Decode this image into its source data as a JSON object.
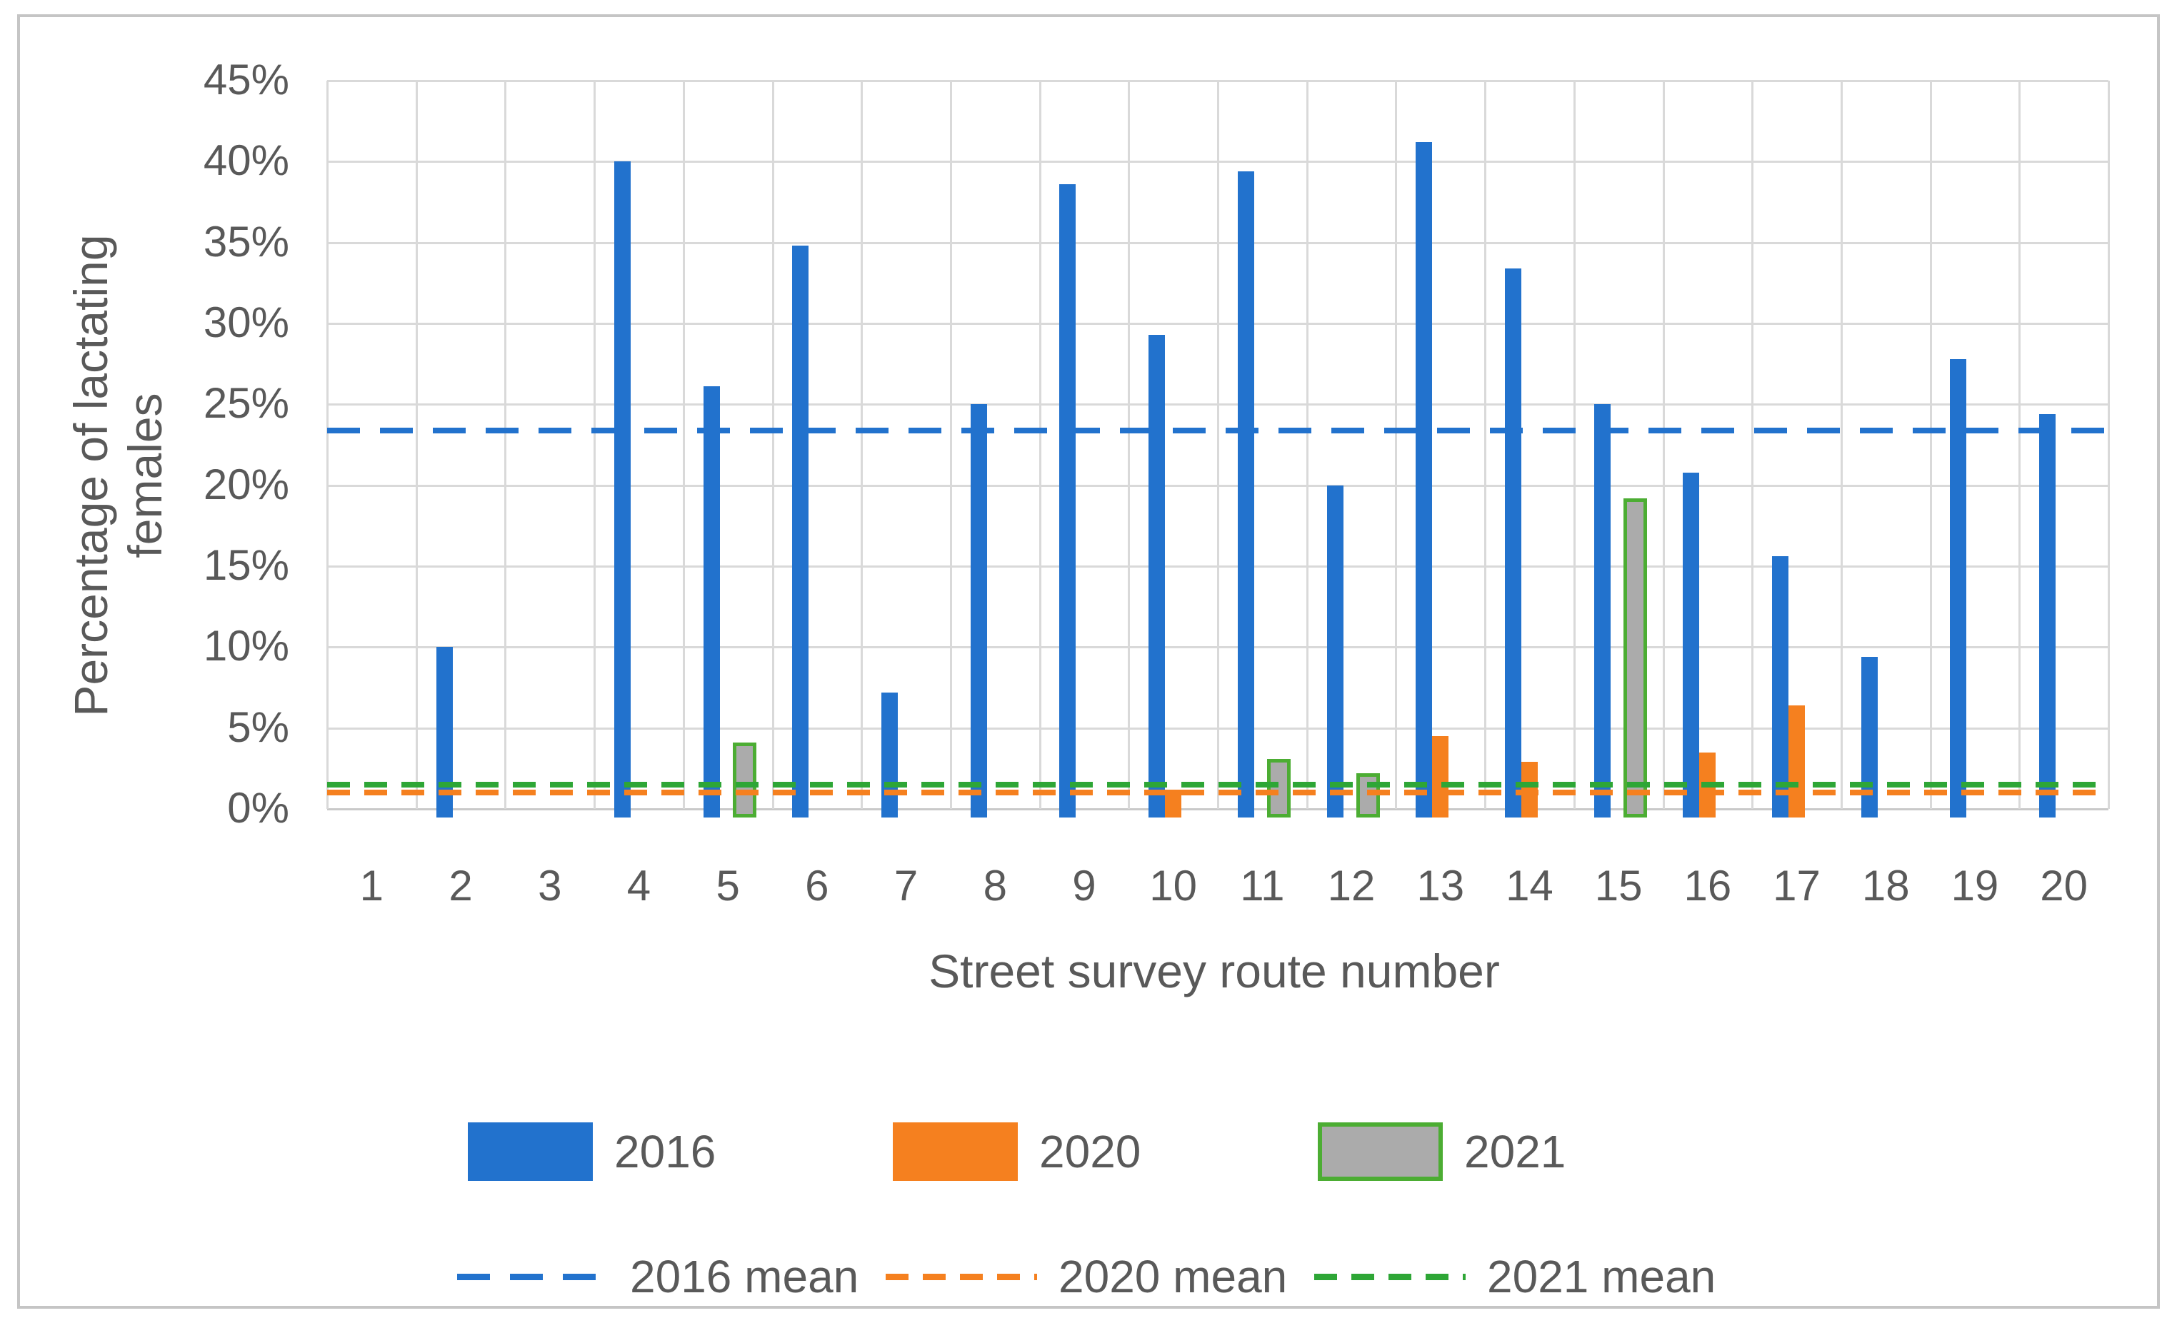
{
  "figure": {
    "background": "#FFFFFF",
    "border_color": "#C5C5C5",
    "text_color": "#595959",
    "gridline_color": "#D9D9D9"
  },
  "chart_data": {
    "type": "bar",
    "title": "",
    "xlabel": "Street survey route number",
    "ylabel": "Percentage of lactating females",
    "categories": [
      "1",
      "2",
      "3",
      "4",
      "5",
      "6",
      "7",
      "8",
      "9",
      "10",
      "11",
      "12",
      "13",
      "14",
      "15",
      "16",
      "17",
      "18",
      "19",
      "20"
    ],
    "series": [
      {
        "name": "2016",
        "color": "#2272CD",
        "values": [
          0,
          10.0,
          0,
          40.0,
          26.1,
          34.8,
          7.2,
          25.0,
          38.6,
          29.3,
          39.4,
          20.0,
          41.2,
          33.4,
          25.0,
          20.8,
          15.6,
          9.4,
          27.8,
          24.4
        ]
      },
      {
        "name": "2020",
        "color": "#F5801F",
        "values": [
          0,
          0,
          0,
          0,
          0,
          0,
          0,
          0,
          0,
          1.2,
          0,
          0,
          4.5,
          2.9,
          0,
          3.5,
          6.4,
          0,
          0,
          0
        ]
      },
      {
        "name": "2021",
        "color": "#ABABAB",
        "border_color": "#4CAD33",
        "values": [
          0,
          0,
          0,
          0,
          4.1,
          0,
          0,
          0,
          0,
          0,
          3.1,
          2.2,
          0,
          0,
          19.2,
          0,
          0,
          0,
          0,
          0
        ]
      }
    ],
    "mean_lines": [
      {
        "name": "2016 mean",
        "value": 23.4,
        "color": "#2272CD"
      },
      {
        "name": "2020 mean",
        "value": 1.0,
        "color": "#F5801F"
      },
      {
        "name": "2021 mean",
        "value": 1.5,
        "color": "#2EA636"
      }
    ],
    "ylim": [
      0,
      45
    ],
    "ytick_step": 5,
    "ytick_labels": [
      "0%",
      "5%",
      "10%",
      "15%",
      "20%",
      "25%",
      "30%",
      "35%",
      "40%",
      "45%"
    ],
    "grid": true,
    "legend_position": "bottom"
  }
}
